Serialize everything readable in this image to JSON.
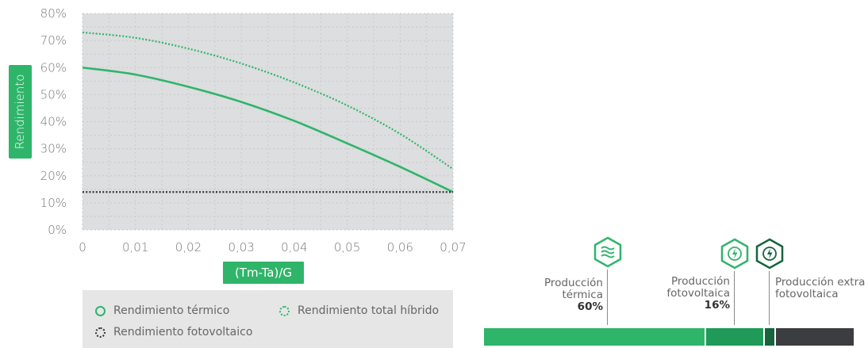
{
  "chart_data": [
    {
      "type": "line",
      "ylabel": "Rendimiento",
      "xlabel": "(Tm-Ta)/G",
      "xlim": [
        0,
        0.07
      ],
      "ylim": [
        0,
        80
      ],
      "x_ticks": [
        "0",
        "0,01",
        "0,02",
        "0,03",
        "0,04",
        "0,05",
        "0,06",
        "0,07"
      ],
      "y_ticks": [
        "0%",
        "10%",
        "20%",
        "30%",
        "40%",
        "50%",
        "60%",
        "70%",
        "80%"
      ],
      "grid": true,
      "series": [
        {
          "name": "Rendimiento térmico",
          "style": "solid",
          "color": "#2fb56a",
          "x": [
            0,
            0.01,
            0.02,
            0.03,
            0.04,
            0.05,
            0.06,
            0.07
          ],
          "y": [
            60,
            57.4,
            52.9,
            47.3,
            40.3,
            32,
            23.3,
            14
          ]
        },
        {
          "name": "Rendimiento total híbrido",
          "style": "dotted",
          "color": "#2fb56a",
          "x": [
            0,
            0.01,
            0.02,
            0.03,
            0.04,
            0.05,
            0.06,
            0.07
          ],
          "y": [
            73,
            71,
            67,
            61.5,
            54.5,
            46,
            35.5,
            22.5
          ]
        },
        {
          "name": "Rendimiento fotovoltaico",
          "style": "dotted",
          "color": "#333333",
          "x": [
            0,
            0.07
          ],
          "y": [
            14,
            14
          ]
        }
      ],
      "legend": [
        {
          "label": "Rendimiento térmico",
          "marker": "solid"
        },
        {
          "label": "Rendimiento total híbrido",
          "marker": "dotgreen"
        },
        {
          "label": "Rendimiento fotovoltaico",
          "marker": "dotdark"
        }
      ]
    },
    {
      "type": "bar",
      "orientation": "horizontal-stacked",
      "segments": [
        {
          "label_line1": "Producción",
          "label_line2": "térmica",
          "value_label": "60%",
          "value": 60,
          "color": "#2fb56a",
          "icon": "heat-waves-icon"
        },
        {
          "label_line1": "Producción",
          "label_line2": "fotovoltaica",
          "value_label": "16%",
          "value": 16,
          "color": "#1f9a58",
          "icon": "lightning-icon"
        },
        {
          "label_line1": "Producción extra",
          "label_line2": "fotovoltaica",
          "value_label": "",
          "value": 3,
          "color": "#17643d",
          "icon": "lightning-icon"
        },
        {
          "label_line1": "",
          "label_line2": "",
          "value_label": "",
          "value": 21,
          "color": "#3c3d40"
        }
      ]
    }
  ]
}
